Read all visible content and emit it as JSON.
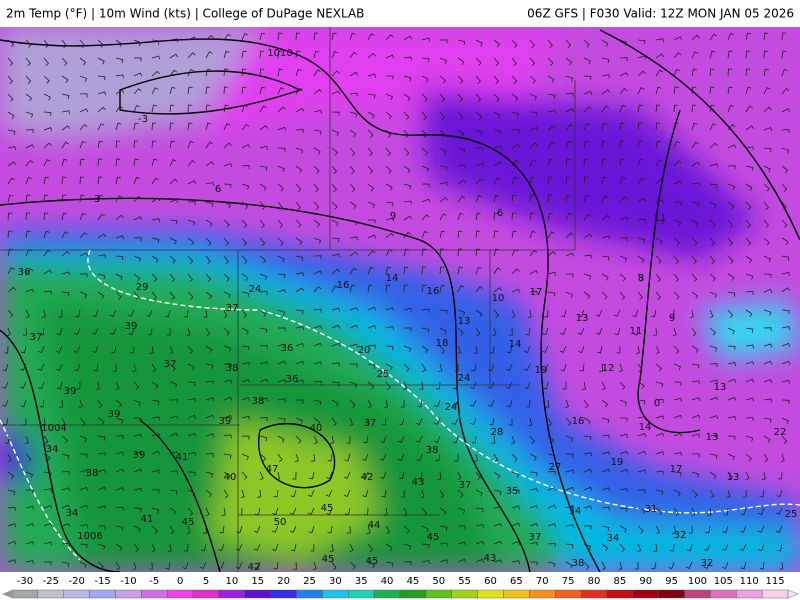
{
  "header": {
    "left": "2m Temp (°F) | 10m Wind (kts) | College of DuPage NEXLAB",
    "right": "06Z GFS | F030 Valid: 12Z MON JAN 05 2026"
  },
  "map": {
    "labels": [
      "1010",
      "-3",
      "6",
      "3",
      "9",
      "6",
      "11",
      "36",
      "29",
      "24",
      "16",
      "14",
      "16",
      "10",
      "17",
      "8",
      "37",
      "39",
      "13",
      "13",
      "11",
      "9",
      "37",
      "36",
      "20",
      "18",
      "14",
      "37",
      "38",
      "25",
      "19",
      "12",
      "36",
      "24",
      "39",
      "13",
      "38",
      "24",
      "0",
      "39",
      "39",
      "37",
      "14",
      "1004",
      "28",
      "16",
      "40",
      "13",
      "22",
      "34",
      "39",
      "41",
      "38",
      "27",
      "19",
      "17",
      "38",
      "47",
      "40",
      "42",
      "43",
      "37",
      "35",
      "13",
      "34",
      "45",
      "34",
      "31",
      "25",
      "41",
      "45",
      "50",
      "44",
      "1006",
      "45",
      "37",
      "34",
      "32",
      "42",
      "45",
      "45",
      "43",
      "38",
      "32"
    ]
  },
  "colorbar": {
    "labels": [
      "-30",
      "-25",
      "-20",
      "-15",
      "-10",
      "-5",
      "0",
      "5",
      "10",
      "15",
      "20",
      "25",
      "30",
      "35",
      "40",
      "45",
      "50",
      "55",
      "60",
      "65",
      "70",
      "75",
      "80",
      "85",
      "90",
      "95",
      "100",
      "105",
      "110",
      "115"
    ]
  }
}
